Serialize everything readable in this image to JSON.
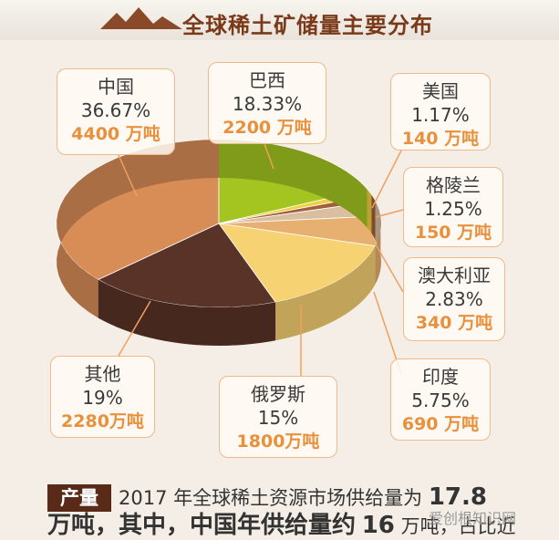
{
  "chart_data": {
    "type": "pie",
    "title": "全球稀土矿储量主要分布",
    "categories": [
      "中国",
      "巴西",
      "美国",
      "格陵兰",
      "澳大利亚",
      "印度",
      "俄罗斯",
      "其他"
    ],
    "values": [
      36.67,
      18.33,
      1.17,
      1.25,
      2.83,
      5.75,
      15,
      19
    ],
    "value_labels": [
      "36.67%",
      "18.33%",
      "1.17%",
      "1.25%",
      "2.83%",
      "5.75%",
      "15%",
      "19%"
    ],
    "amounts": [
      4400,
      2200,
      140,
      150,
      340,
      690,
      1800,
      2280
    ],
    "amount_labels": [
      "4400 万吨",
      "2200 万吨",
      "140 万吨",
      "150 万吨",
      "340 万吨",
      "690 万吨",
      "1800万吨",
      "2280万吨"
    ],
    "colors": [
      "#d98d56",
      "#a4c520",
      "#f0d040",
      "#a0603a",
      "#d9bfa0",
      "#e8b070",
      "#f7d272",
      "#5a3328"
    ]
  },
  "footnote": {
    "badge": "产量",
    "text_1": "2017 年全球稀土资源市场供给量为",
    "number_1": "17.8",
    "text_2": "万吨，其中，中国年供给量约",
    "number_2": "16",
    "text_3": "万吨，占比近"
  },
  "watermark": "爱创根知识网"
}
